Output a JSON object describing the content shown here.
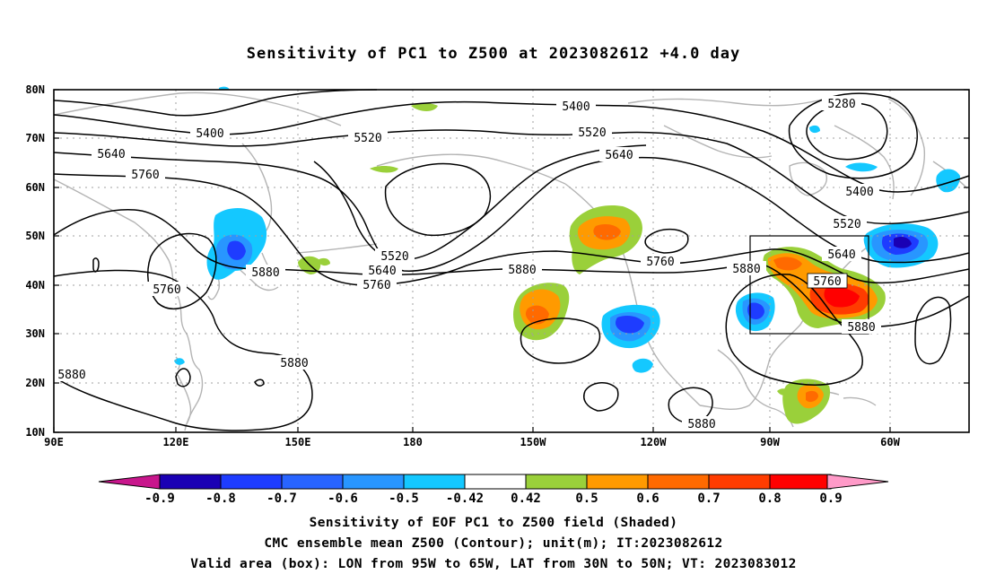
{
  "title": "Sensitivity of PC1 to Z500 at 2023082612 +4.0 day",
  "y_ticks": [
    "80N",
    "70N",
    "60N",
    "50N",
    "40N",
    "30N",
    "20N",
    "10N"
  ],
  "x_ticks": [
    "90E",
    "120E",
    "150E",
    "180",
    "150W",
    "120W",
    "90W",
    "60W"
  ],
  "contour_labels": [
    {
      "text": "5400"
    },
    {
      "text": "5400"
    },
    {
      "text": "5400"
    },
    {
      "text": "5520"
    },
    {
      "text": "5520"
    },
    {
      "text": "5520"
    },
    {
      "text": "5520"
    },
    {
      "text": "5640"
    },
    {
      "text": "5640"
    },
    {
      "text": "5640"
    },
    {
      "text": "5640"
    },
    {
      "text": "5760"
    },
    {
      "text": "5760"
    },
    {
      "text": "5760"
    },
    {
      "text": "5760"
    },
    {
      "text": "5760"
    },
    {
      "text": "5880"
    },
    {
      "text": "5880"
    },
    {
      "text": "5880"
    },
    {
      "text": "5880"
    },
    {
      "text": "5880"
    },
    {
      "text": "5880"
    },
    {
      "text": "5880"
    },
    {
      "text": "5280"
    }
  ],
  "colorbar": {
    "labels": [
      "-0.9",
      "-0.8",
      "-0.7",
      "-0.6",
      "-0.5",
      "-0.42",
      "0.42",
      "0.5",
      "0.6",
      "0.7",
      "0.8",
      "0.9"
    ],
    "colors": [
      "#1a00b4",
      "#1e3cff",
      "#2864ff",
      "#2896ff",
      "#14c8ff",
      "#ffffff",
      "#9ad03a",
      "#ff9a00",
      "#ff6a00",
      "#ff3c00",
      "#ff0000"
    ],
    "low_arrow": "#c8168c",
    "high_arrow": "#ff9ac8"
  },
  "captions": {
    "line1": "Sensitivity of EOF PC1 to Z500 field (Shaded)",
    "line2": "CMC ensemble mean Z500 (Contour); unit(m); IT:2023082612",
    "line3": "Valid area (box): LON from 95W to 65W, LAT from 30N to 50N; VT: 2023083012"
  }
}
